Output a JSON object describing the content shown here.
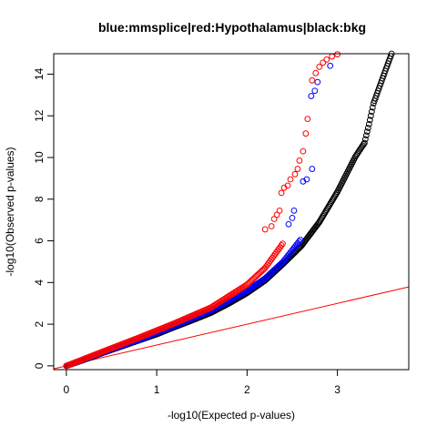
{
  "chart_data": {
    "type": "scatter",
    "title": "blue:mmsplice|red:Hypothalamus|black:bkg",
    "xlabel": "-log10(Expected p-values)",
    "ylabel": "-log10(Observed p-values)",
    "xlim": [
      -0.14,
      3.79
    ],
    "ylim": [
      -0.18,
      14.98
    ],
    "x_ticks": [
      0,
      1,
      2,
      3
    ],
    "y_ticks": [
      0,
      2,
      4,
      6,
      8,
      10,
      12,
      14
    ],
    "grid": false,
    "reference_line": {
      "color": "#ff0000",
      "x": [
        -0.14,
        3.79
      ],
      "y": [
        -0.14,
        3.79
      ]
    },
    "series": [
      {
        "color": "#000000",
        "marker": "open-circle",
        "curve_x": [
          0,
          0.2,
          0.4,
          0.6,
          0.8,
          1.0,
          1.2,
          1.4,
          1.6,
          1.8,
          2.0,
          2.2,
          2.4,
          2.6,
          2.8,
          3.0,
          3.1,
          3.2,
          3.3,
          3.35,
          3.4,
          3.5,
          3.6
        ],
        "curve_y": [
          0.0,
          0.3,
          0.62,
          0.92,
          1.22,
          1.52,
          1.87,
          2.2,
          2.55,
          3.0,
          3.5,
          4.1,
          4.9,
          5.75,
          6.9,
          8.35,
          9.2,
          10.05,
          10.7,
          11.6,
          12.6,
          13.8,
          14.98
        ]
      },
      {
        "color": "#0000ff",
        "marker": "open-circle",
        "curve_x": [
          0,
          0.4,
          0.8,
          1.2,
          1.6,
          2.0,
          2.2,
          2.4,
          2.6
        ],
        "curve_y": [
          0.0,
          0.64,
          1.25,
          1.93,
          2.65,
          3.6,
          4.2,
          5.0,
          6.1
        ],
        "points": [
          [
            2.46,
            6.8
          ],
          [
            2.5,
            7.1
          ],
          [
            2.52,
            7.45
          ],
          [
            2.62,
            8.85
          ],
          [
            2.66,
            8.95
          ],
          [
            2.72,
            9.45
          ],
          [
            2.71,
            12.95
          ],
          [
            2.75,
            13.2
          ],
          [
            2.78,
            13.62
          ],
          [
            2.92,
            14.4
          ]
        ]
      },
      {
        "color": "#ff0000",
        "marker": "open-circle",
        "curve_x": [
          0,
          0.4,
          0.8,
          1.2,
          1.6,
          2.0,
          2.2,
          2.4
        ],
        "curve_y": [
          0.0,
          0.68,
          1.35,
          2.05,
          2.8,
          3.9,
          4.7,
          5.9
        ],
        "points": [
          [
            2.2,
            6.55
          ],
          [
            2.27,
            6.7
          ],
          [
            2.3,
            7.05
          ],
          [
            2.33,
            7.25
          ],
          [
            2.36,
            7.45
          ],
          [
            2.38,
            8.3
          ],
          [
            2.41,
            8.55
          ],
          [
            2.45,
            8.65
          ],
          [
            2.48,
            8.95
          ],
          [
            2.53,
            9.2
          ],
          [
            2.56,
            9.45
          ],
          [
            2.58,
            9.85
          ],
          [
            2.62,
            10.3
          ],
          [
            2.65,
            11.15
          ],
          [
            2.67,
            11.85
          ],
          [
            2.72,
            13.7
          ],
          [
            2.76,
            14.05
          ],
          [
            2.8,
            14.35
          ],
          [
            2.84,
            14.55
          ],
          [
            2.88,
            14.7
          ],
          [
            2.94,
            14.85
          ],
          [
            3.0,
            14.95
          ]
        ]
      }
    ]
  }
}
